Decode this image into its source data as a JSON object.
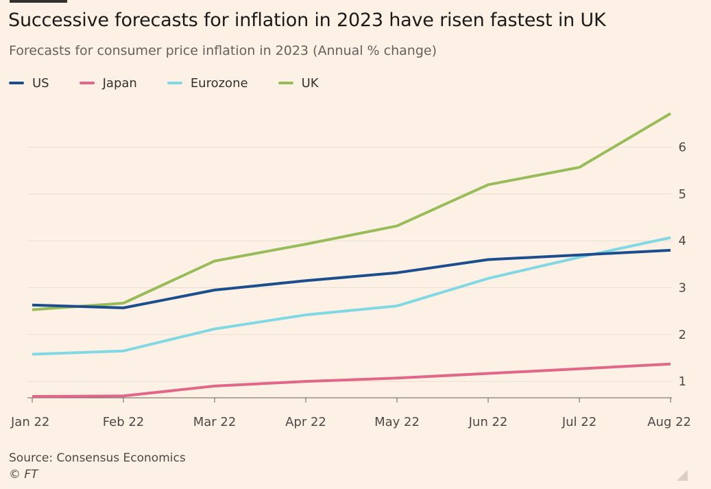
{
  "title": "Successive forecasts for inflation in 2023 have risen fastest in UK",
  "subtitle": "Forecasts for consumer price inflation in 2023 (Annual % change)",
  "source": "Source: Consensus Economics",
  "copyright": "© FT",
  "chart_data": {
    "type": "line",
    "title": "Successive forecasts for inflation in 2023 have risen fastest in UK",
    "subtitle": "Forecasts for consumer price inflation in 2023 (Annual % change)",
    "xlabel": "",
    "ylabel": "",
    "categories": [
      "Jan 22",
      "Feb 22",
      "Mar 22",
      "Apr 22",
      "May 22",
      "Jun 22",
      "Jul 22",
      "Aug 22"
    ],
    "y_ticks": [
      1,
      2,
      3,
      4,
      5,
      6
    ],
    "ylim": [
      0.65,
      6.8
    ],
    "grid": true,
    "y_axis_position": "right",
    "legend_position": "top-left",
    "series": [
      {
        "name": "US",
        "color": "#1c4d8c",
        "values": [
          2.63,
          2.57,
          2.95,
          3.15,
          3.32,
          3.6,
          3.7,
          3.8
        ]
      },
      {
        "name": "Japan",
        "color": "#e0668a",
        "values": [
          0.68,
          0.69,
          0.9,
          1.0,
          1.07,
          1.17,
          1.27,
          1.37
        ]
      },
      {
        "name": "Eurozone",
        "color": "#7fd8e3",
        "values": [
          1.58,
          1.65,
          2.12,
          2.42,
          2.61,
          3.2,
          3.65,
          4.07
        ]
      },
      {
        "name": "UK",
        "color": "#98bc5a",
        "values": [
          2.53,
          2.67,
          3.57,
          3.93,
          4.32,
          5.2,
          5.57,
          6.72
        ]
      }
    ]
  }
}
